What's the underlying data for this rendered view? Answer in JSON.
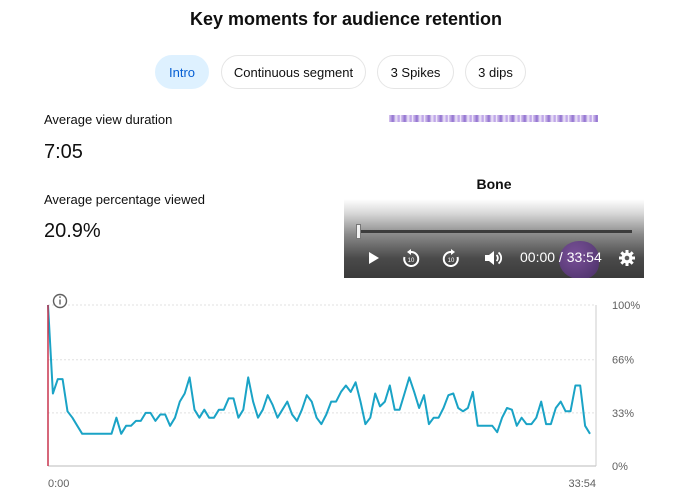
{
  "title": "Key moments for audience retention",
  "tabs": [
    {
      "label": "Intro",
      "active": true
    },
    {
      "label": "Continuous segment",
      "active": false
    },
    {
      "label": "3 Spikes",
      "active": false
    },
    {
      "label": "3 dips",
      "active": false
    }
  ],
  "stats": {
    "avg_duration_label": "Average view duration",
    "avg_duration_value": "7:05",
    "avg_percent_label": "Average percentage viewed",
    "avg_percent_value": "20.9%"
  },
  "video": {
    "title": "Bone",
    "timecode": "00:00 / 33:54",
    "progress": 0
  },
  "colors": {
    "accent": "#065fd4",
    "chip_active_bg": "#def1ff",
    "line": "#1aa3c6",
    "marker": "#c9354f"
  },
  "icons": [
    "info-icon",
    "play-icon",
    "rewind-10-icon",
    "forward-10-icon",
    "volume-icon",
    "gear-icon"
  ],
  "chart_data": {
    "type": "line",
    "x_start_label": "0:00",
    "x_end_label": "33:54",
    "y_tick_labels": [
      "100%",
      "66%",
      "33%",
      "0%"
    ],
    "ylim": [
      0,
      100
    ],
    "y_ticks": [
      100,
      66,
      33,
      0
    ],
    "grid": true,
    "series": [
      {
        "values": [
          100,
          45,
          54,
          54,
          34,
          30,
          25,
          20,
          20,
          20,
          20,
          20,
          20,
          20,
          30,
          20,
          25,
          25,
          28,
          28,
          33,
          33,
          28,
          32,
          32,
          25,
          30,
          40,
          45,
          55,
          35,
          30,
          35,
          30,
          30,
          35,
          35,
          42,
          42,
          30,
          35,
          55,
          40,
          30,
          35,
          44,
          38,
          30,
          35,
          40,
          32,
          28,
          35,
          44,
          40,
          30,
          26,
          32,
          40,
          40,
          46,
          50,
          46,
          52,
          40,
          26,
          30,
          45,
          37,
          40,
          50,
          35,
          35,
          45,
          55,
          46,
          36,
          44,
          26,
          30,
          30,
          36,
          44,
          45,
          36,
          34,
          36,
          46,
          25,
          25,
          25,
          25,
          21,
          30,
          36,
          35,
          25,
          30,
          26,
          26,
          30,
          40,
          26,
          26,
          36,
          40,
          34,
          34,
          50,
          50,
          25,
          20
        ]
      }
    ]
  }
}
